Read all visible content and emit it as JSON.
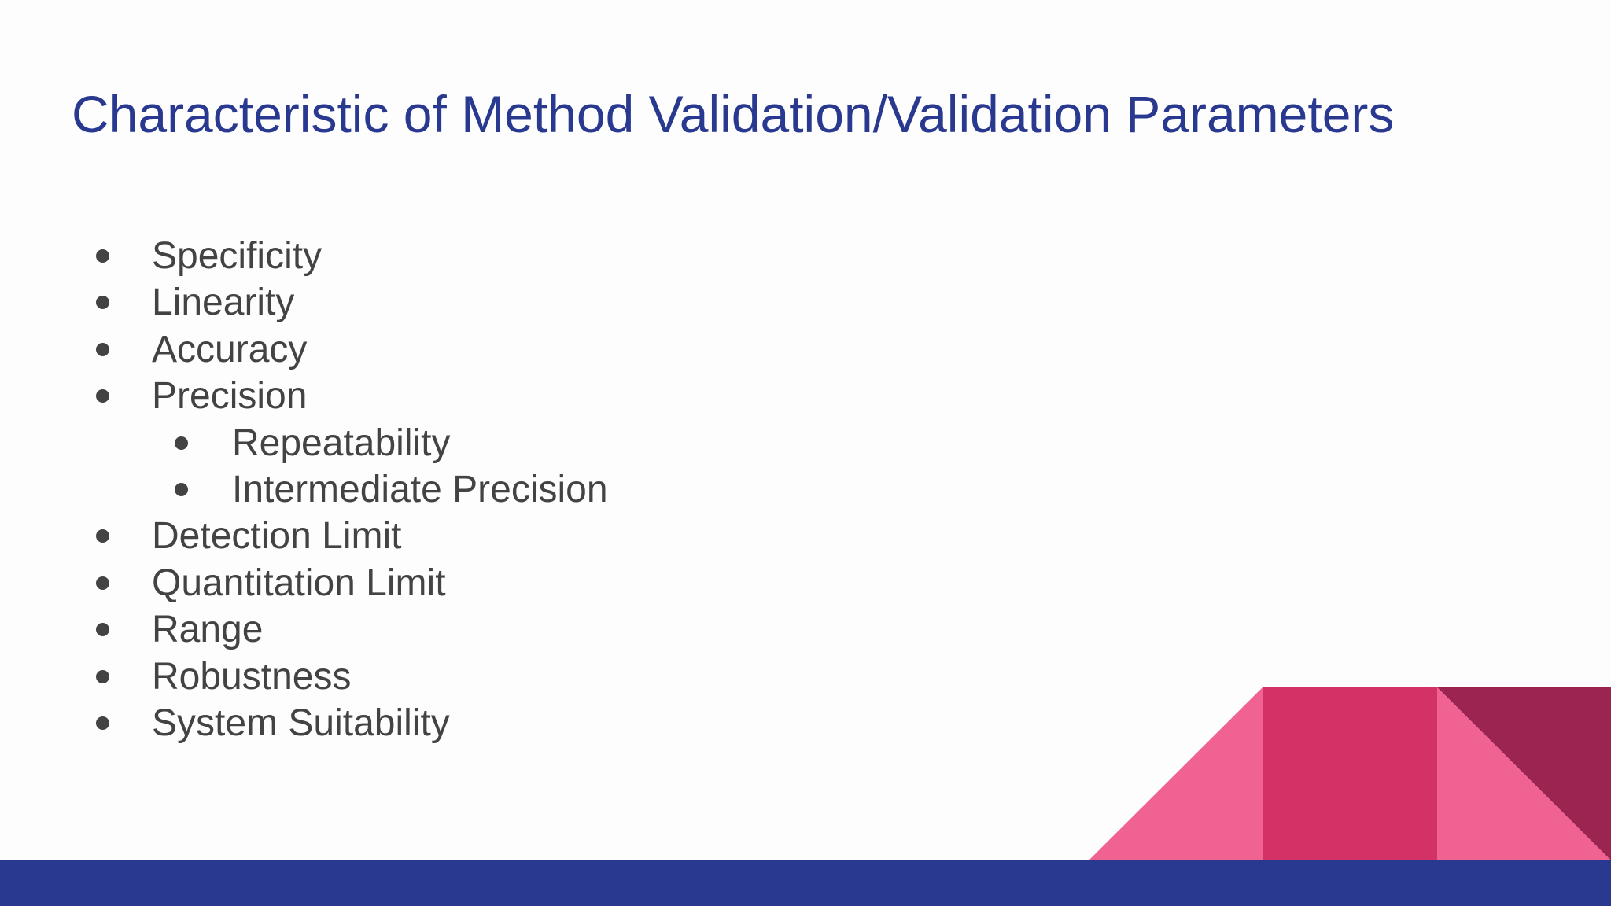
{
  "slide": {
    "title": "Characteristic of Method Validation/Validation Parameters",
    "items": [
      {
        "text": "Specificity"
      },
      {
        "text": "Linearity"
      },
      {
        "text": "Accuracy"
      },
      {
        "text": "Precision",
        "subitems": [
          "Repeatability",
          "Intermediate Precision"
        ]
      },
      {
        "text": "Detection Limit"
      },
      {
        "text": "Quantitation Limit"
      },
      {
        "text": "Range"
      },
      {
        "text": "Robustness"
      },
      {
        "text": "System Suitability"
      }
    ]
  }
}
